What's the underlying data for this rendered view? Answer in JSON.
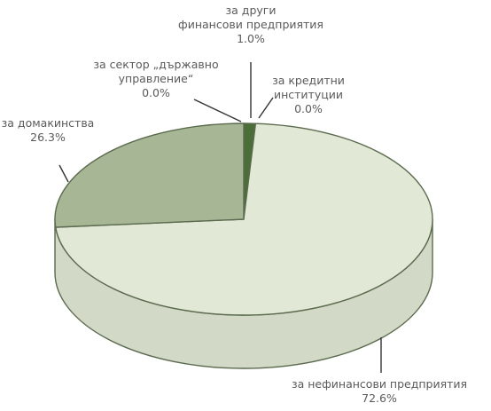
{
  "chart_data": {
    "type": "pie",
    "title": "",
    "slices": [
      {
        "label": [
          "за нефинансови предприятия"
        ],
        "value": 72.6,
        "value_text": "72.6%",
        "color": "#e2e8d6"
      },
      {
        "label": [
          "за домакинства"
        ],
        "value": 26.3,
        "value_text": "26.3%",
        "color": "#a7b795"
      },
      {
        "label": [
          "за сектор „държавно",
          "управление“"
        ],
        "value": 0.0,
        "value_text": "0.0%",
        "color": "#4b6e39"
      },
      {
        "label": [
          "за други",
          "финансови предприятия"
        ],
        "value": 1.0,
        "value_text": "1.0%",
        "color": "#4b6e39"
      },
      {
        "label": [
          "за кредитни",
          "институции"
        ],
        "value": 0.0,
        "value_text": "0.0%",
        "color": "#4b6e39"
      }
    ],
    "edge_color": "#5b6a4e",
    "side_color": "#d3d9c7"
  }
}
